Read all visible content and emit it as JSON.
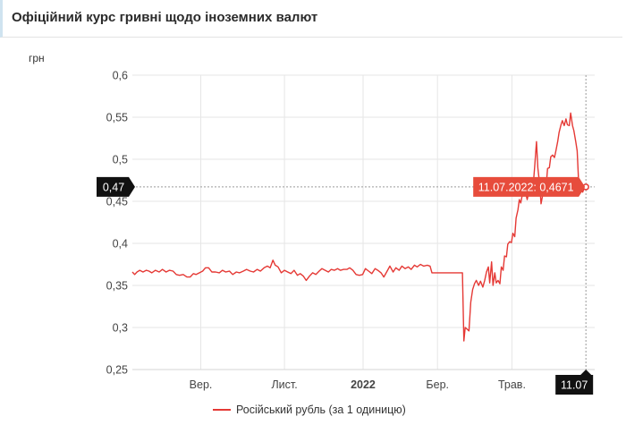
{
  "header": {
    "title": "Офіційний курс гривні щодо іноземних валют"
  },
  "chart_data": {
    "type": "line",
    "title": "Офіційний курс гривні щодо іноземних валют",
    "ylabel": "грн",
    "xlabel": "",
    "ylim": [
      0.25,
      0.6
    ],
    "xlim": [
      0,
      100
    ],
    "y_ticks": [
      "0,25",
      "0,3",
      "0,35",
      "0,4",
      "0,45",
      "0,5",
      "0,55",
      "0,6"
    ],
    "y_tick_values": [
      0.25,
      0.3,
      0.35,
      0.4,
      0.45,
      0.5,
      0.55,
      0.6
    ],
    "x_ticks": [
      {
        "label": "Вер.",
        "x": 14.8,
        "bold": false
      },
      {
        "label": "Лист.",
        "x": 32.9,
        "bold": false
      },
      {
        "label": "2022",
        "x": 49.9,
        "bold": true
      },
      {
        "label": "Бер.",
        "x": 66.0,
        "bold": false
      },
      {
        "label": "Трав.",
        "x": 82.1,
        "bold": false
      }
    ],
    "grid": true,
    "legend_position": "bottom",
    "series": [
      {
        "name": "Російський рубль (за 1 одиницю)",
        "color": "#e53935",
        "points": [
          [
            0,
            0.366
          ],
          [
            0.5,
            0.363
          ],
          [
            1,
            0.366
          ],
          [
            1.6,
            0.368
          ],
          [
            2.3,
            0.366
          ],
          [
            3,
            0.368
          ],
          [
            3.6,
            0.367
          ],
          [
            4.2,
            0.365
          ],
          [
            5,
            0.368
          ],
          [
            5.8,
            0.366
          ],
          [
            6.5,
            0.369
          ],
          [
            7.3,
            0.366
          ],
          [
            8,
            0.368
          ],
          [
            8.8,
            0.367
          ],
          [
            9.5,
            0.363
          ],
          [
            10.2,
            0.362
          ],
          [
            11,
            0.363
          ],
          [
            11.8,
            0.36
          ],
          [
            12.5,
            0.36
          ],
          [
            13.2,
            0.364
          ],
          [
            13.8,
            0.363
          ],
          [
            14.5,
            0.365
          ],
          [
            15.2,
            0.367
          ],
          [
            15.8,
            0.371
          ],
          [
            16.5,
            0.371
          ],
          [
            17.2,
            0.366
          ],
          [
            18,
            0.366
          ],
          [
            18.8,
            0.365
          ],
          [
            19.5,
            0.368
          ],
          [
            20.2,
            0.366
          ],
          [
            21,
            0.367
          ],
          [
            21.7,
            0.363
          ],
          [
            22.5,
            0.366
          ],
          [
            23.2,
            0.365
          ],
          [
            24,
            0.367
          ],
          [
            24.7,
            0.369
          ],
          [
            25.5,
            0.367
          ],
          [
            26.2,
            0.366
          ],
          [
            27,
            0.369
          ],
          [
            27.7,
            0.367
          ],
          [
            28.5,
            0.371
          ],
          [
            29.2,
            0.373
          ],
          [
            29.8,
            0.371
          ],
          [
            30.4,
            0.38
          ],
          [
            30.9,
            0.374
          ],
          [
            31.5,
            0.372
          ],
          [
            32.2,
            0.365
          ],
          [
            32.9,
            0.368
          ],
          [
            33.6,
            0.366
          ],
          [
            34.3,
            0.364
          ],
          [
            35,
            0.368
          ],
          [
            35.7,
            0.362
          ],
          [
            36.3,
            0.364
          ],
          [
            37,
            0.361
          ],
          [
            37.6,
            0.356
          ],
          [
            38.3,
            0.361
          ],
          [
            39,
            0.365
          ],
          [
            39.7,
            0.363
          ],
          [
            40.4,
            0.367
          ],
          [
            41,
            0.37
          ],
          [
            41.7,
            0.368
          ],
          [
            42.4,
            0.366
          ],
          [
            43,
            0.369
          ],
          [
            43.7,
            0.368
          ],
          [
            44.4,
            0.37
          ],
          [
            45,
            0.368
          ],
          [
            45.7,
            0.369
          ],
          [
            46.4,
            0.369
          ],
          [
            47,
            0.371
          ],
          [
            47.7,
            0.368
          ],
          [
            48.4,
            0.363
          ],
          [
            49.1,
            0.362
          ],
          [
            49.8,
            0.363
          ],
          [
            50.4,
            0.37
          ],
          [
            51.1,
            0.367
          ],
          [
            51.8,
            0.364
          ],
          [
            52.5,
            0.37
          ],
          [
            53.1,
            0.368
          ],
          [
            53.8,
            0.365
          ],
          [
            54.4,
            0.36
          ],
          [
            55.1,
            0.367
          ],
          [
            55.7,
            0.373
          ],
          [
            56.4,
            0.366
          ],
          [
            57,
            0.371
          ],
          [
            57.7,
            0.368
          ],
          [
            58.3,
            0.373
          ],
          [
            59,
            0.37
          ],
          [
            59.7,
            0.372
          ],
          [
            60.3,
            0.369
          ],
          [
            61,
            0.374
          ],
          [
            61.6,
            0.372
          ],
          [
            62.3,
            0.375
          ],
          [
            63,
            0.373
          ],
          [
            63.8,
            0.374
          ],
          [
            64.4,
            0.373
          ],
          [
            64.8,
            0.365
          ],
          [
            71.4,
            0.365
          ],
          [
            71.7,
            0.284
          ],
          [
            72.0,
            0.3
          ],
          [
            72.4,
            0.298
          ],
          [
            72.8,
            0.296
          ],
          [
            73.2,
            0.33
          ],
          [
            73.6,
            0.345
          ],
          [
            74,
            0.352
          ],
          [
            74.4,
            0.356
          ],
          [
            74.9,
            0.35
          ],
          [
            75.3,
            0.355
          ],
          [
            75.8,
            0.348
          ],
          [
            76.2,
            0.356
          ],
          [
            76.6,
            0.366
          ],
          [
            77,
            0.372
          ],
          [
            77.3,
            0.353
          ],
          [
            77.7,
            0.378
          ],
          [
            78,
            0.35
          ],
          [
            78.4,
            0.365
          ],
          [
            78.7,
            0.353
          ],
          [
            79.1,
            0.356
          ],
          [
            79.5,
            0.352
          ],
          [
            79.8,
            0.372
          ],
          [
            80.2,
            0.368
          ],
          [
            80.5,
            0.385
          ],
          [
            80.9,
            0.384
          ],
          [
            81.2,
            0.399
          ],
          [
            81.6,
            0.402
          ],
          [
            82,
            0.401
          ],
          [
            82.3,
            0.412
          ],
          [
            82.7,
            0.408
          ],
          [
            83,
            0.43
          ],
          [
            83.4,
            0.44
          ],
          [
            83.7,
            0.452
          ],
          [
            84,
            0.448
          ],
          [
            84.4,
            0.459
          ],
          [
            84.7,
            0.457
          ],
          [
            85,
            0.462
          ],
          [
            85.4,
            0.452
          ],
          [
            85.7,
            0.46
          ],
          [
            86,
            0.467
          ],
          [
            86.4,
            0.47
          ],
          [
            86.7,
            0.469
          ],
          [
            87.0,
            0.49
          ],
          [
            87.4,
            0.521
          ],
          [
            87.7,
            0.49
          ],
          [
            88.1,
            0.47
          ],
          [
            88.4,
            0.447
          ],
          [
            88.8,
            0.459
          ],
          [
            89.1,
            0.465
          ],
          [
            89.5,
            0.468
          ],
          [
            89.8,
            0.489
          ],
          [
            90.2,
            0.49
          ],
          [
            90.5,
            0.503
          ],
          [
            90.9,
            0.505
          ],
          [
            91.3,
            0.502
          ],
          [
            91.6,
            0.51
          ],
          [
            92,
            0.521
          ],
          [
            92.3,
            0.532
          ],
          [
            92.7,
            0.541
          ],
          [
            93,
            0.546
          ],
          [
            93.4,
            0.54
          ],
          [
            93.8,
            0.548
          ],
          [
            94.1,
            0.541
          ],
          [
            94.5,
            0.54
          ],
          [
            94.8,
            0.555
          ],
          [
            95.2,
            0.54
          ],
          [
            95.5,
            0.534
          ],
          [
            95.9,
            0.521
          ],
          [
            96.2,
            0.51
          ],
          [
            96.5,
            0.476
          ],
          [
            96.8,
            0.46
          ],
          [
            97.0,
            0.463
          ],
          [
            97.4,
            0.461
          ],
          [
            97.8,
            0.467
          ],
          [
            98.1,
            0.4671
          ]
        ]
      }
    ],
    "annotations": {
      "y_marker": "0,47",
      "x_marker": "11.07",
      "tooltip": "11.07.2022: 0,4671",
      "tooltip_value": 0.4671,
      "tooltip_x": 98.1
    }
  },
  "legend": {
    "label": "Російський рубль (за 1 одиницю)"
  }
}
